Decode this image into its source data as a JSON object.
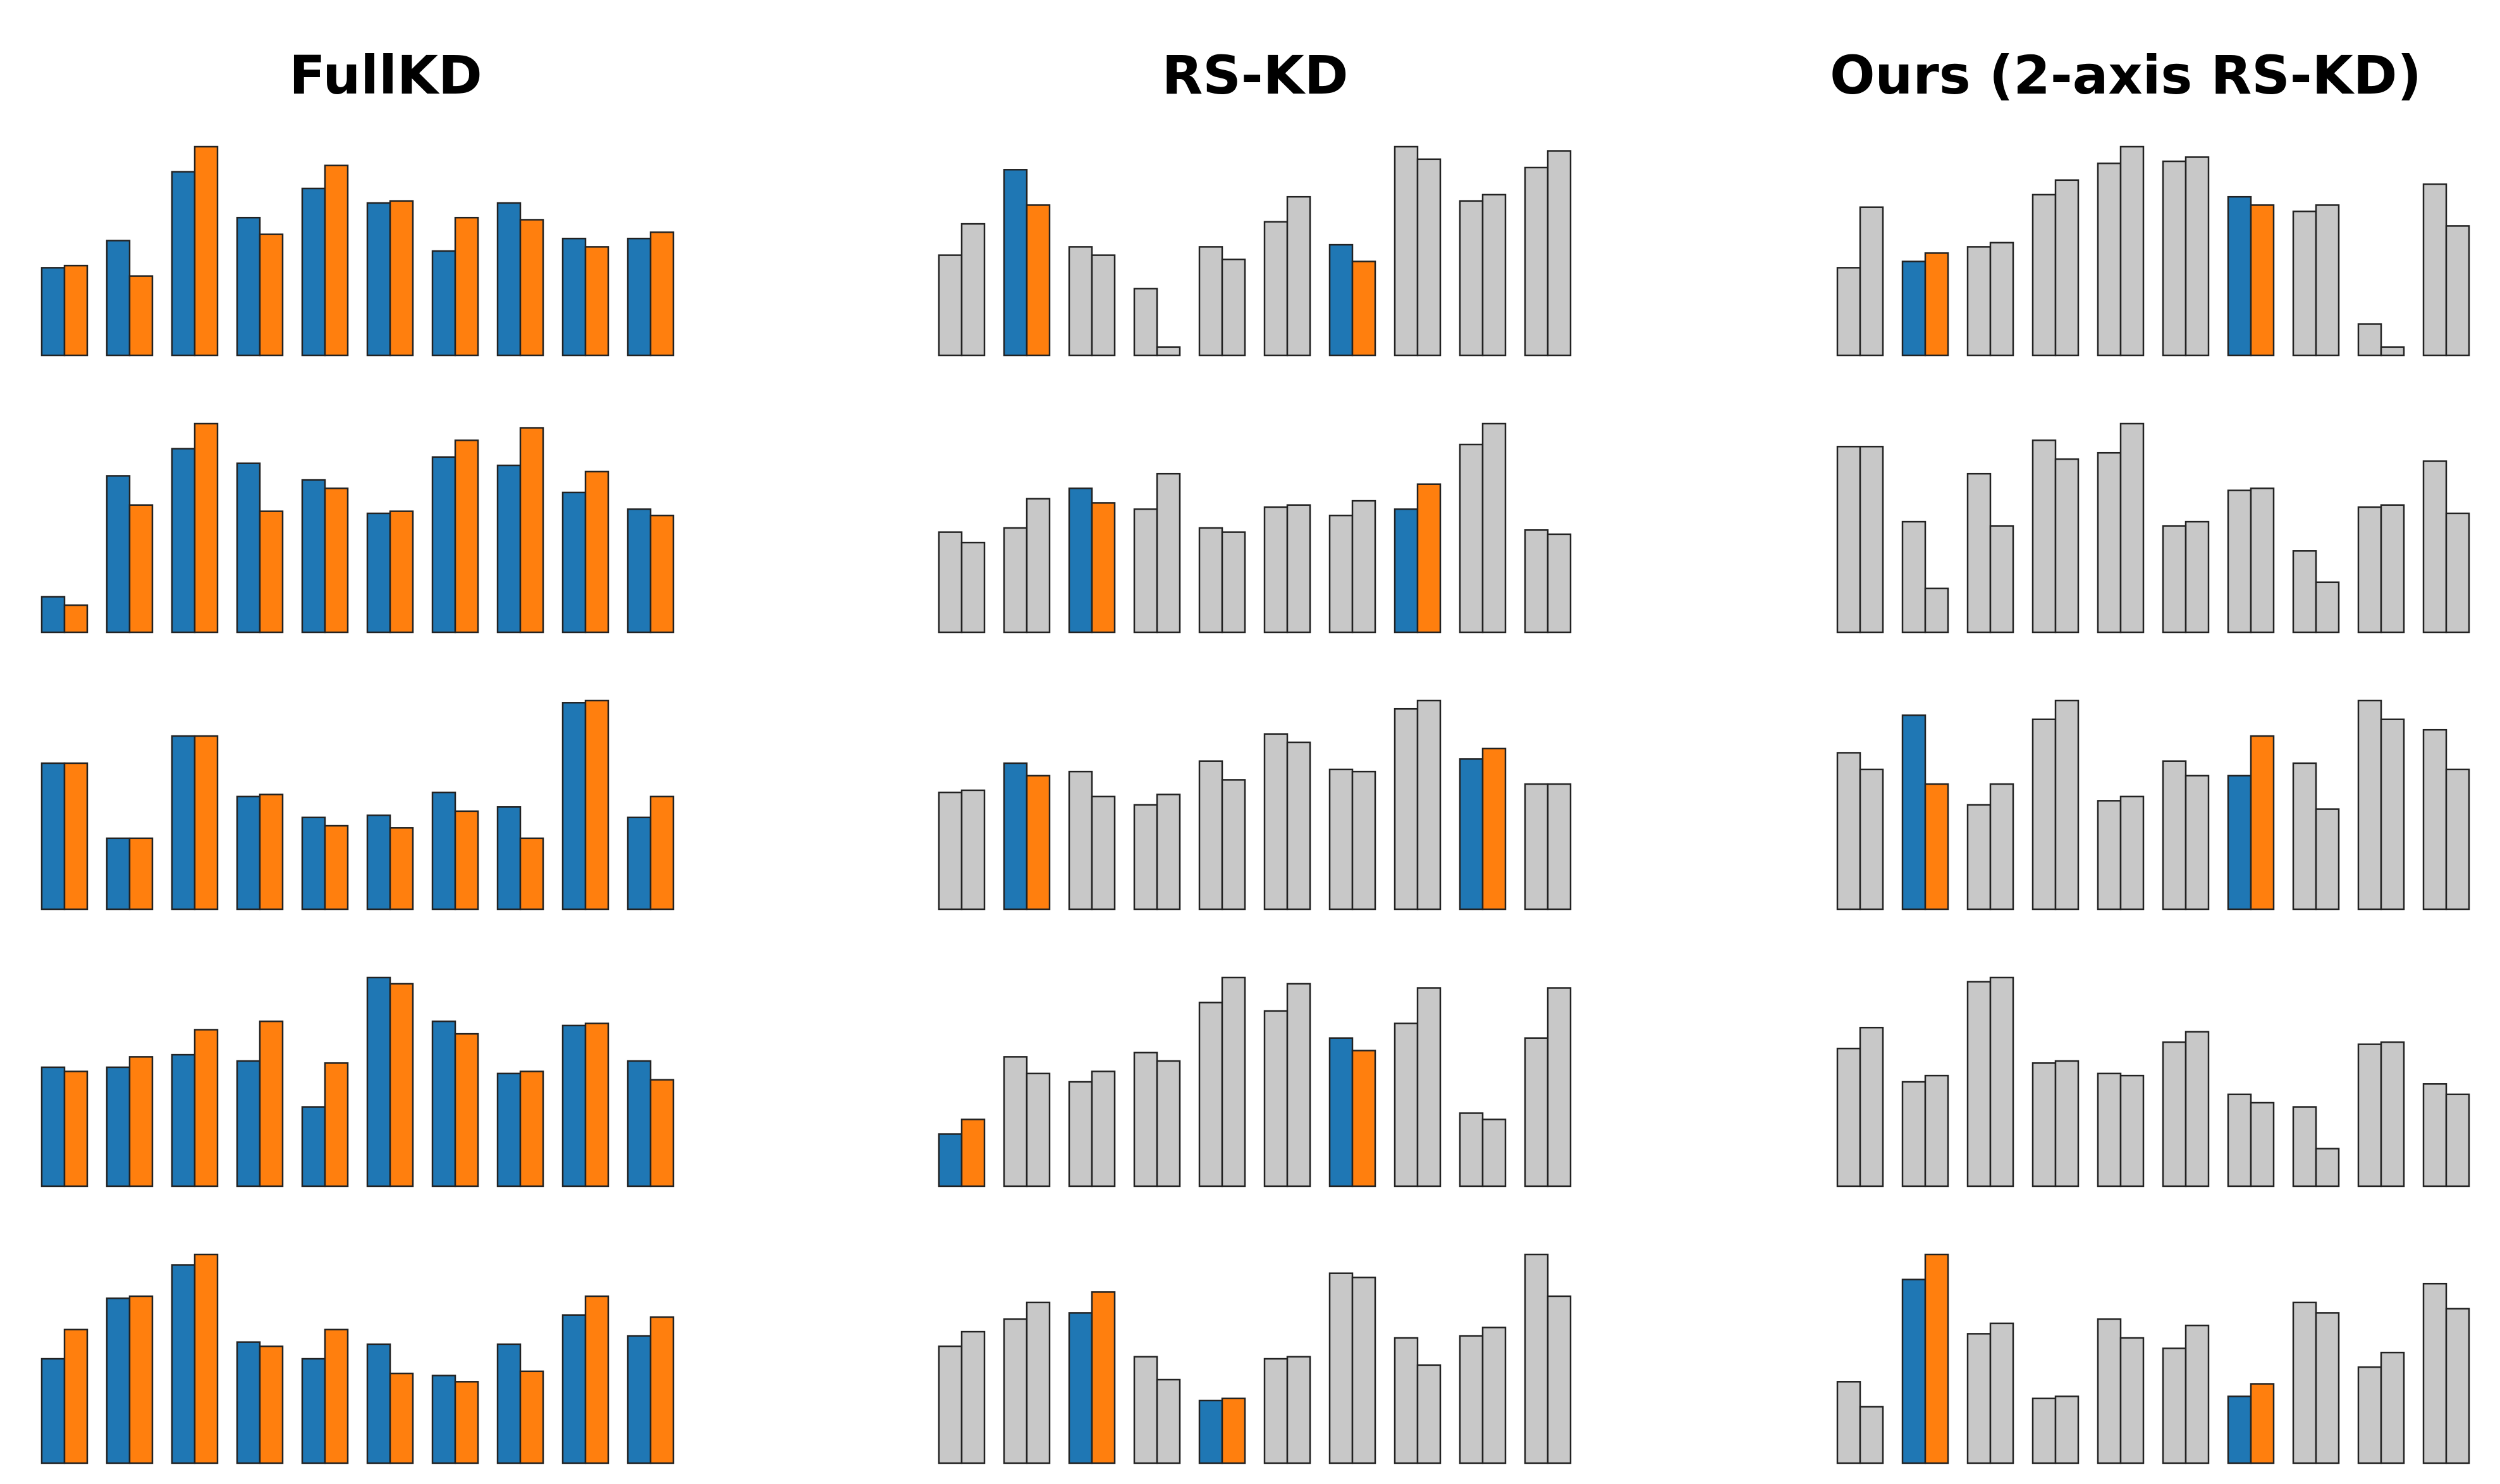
{
  "colors": {
    "teacher": "#1f77b4",
    "student": "#ff7f0e",
    "unselected": "#c8c8c8",
    "edge": "#222222"
  },
  "chart_data": [
    {
      "type": "bar",
      "title": "FullKD",
      "ylim": [
        0,
        1
      ],
      "grid": false,
      "legend": "none",
      "rows": [
        {
          "pairs": [
            [
              0.42,
              0.43
            ],
            [
              0.55,
              0.38
            ],
            [
              0.88,
              1.0
            ],
            [
              0.66,
              0.58
            ],
            [
              0.8,
              0.91
            ],
            [
              0.73,
              0.74
            ],
            [
              0.5,
              0.66
            ],
            [
              0.73,
              0.65
            ],
            [
              0.56,
              0.52
            ],
            [
              0.56,
              0.59
            ]
          ],
          "highlight": [
            0,
            1,
            2,
            3,
            4,
            5,
            6,
            7,
            8,
            9
          ]
        },
        {
          "pairs": [
            [
              0.17,
              0.13
            ],
            [
              0.75,
              0.61
            ],
            [
              0.88,
              1.0
            ],
            [
              0.81,
              0.58
            ],
            [
              0.73,
              0.69
            ],
            [
              0.57,
              0.58
            ],
            [
              0.84,
              0.92
            ],
            [
              0.8,
              0.98
            ],
            [
              0.67,
              0.77
            ],
            [
              0.59,
              0.56
            ]
          ],
          "highlight": [
            0,
            1,
            2,
            3,
            4,
            5,
            6,
            7,
            8,
            9
          ]
        },
        {
          "pairs": [
            [
              0.7,
              0.7
            ],
            [
              0.34,
              0.34
            ],
            [
              0.83,
              0.83
            ],
            [
              0.54,
              0.55
            ],
            [
              0.44,
              0.4
            ],
            [
              0.45,
              0.39
            ],
            [
              0.56,
              0.47
            ],
            [
              0.49,
              0.34
            ],
            [
              0.99,
              1.0
            ],
            [
              0.44,
              0.54
            ]
          ],
          "highlight": [
            0,
            1,
            2,
            3,
            4,
            5,
            6,
            7,
            8,
            9
          ]
        },
        {
          "pairs": [
            [
              0.57,
              0.55
            ],
            [
              0.57,
              0.62
            ],
            [
              0.63,
              0.75
            ],
            [
              0.6,
              0.79
            ],
            [
              0.38,
              0.59
            ],
            [
              1.0,
              0.97
            ],
            [
              0.79,
              0.73
            ],
            [
              0.54,
              0.55
            ],
            [
              0.77,
              0.78
            ],
            [
              0.6,
              0.51
            ]
          ],
          "highlight": [
            0,
            1,
            2,
            3,
            4,
            5,
            6,
            7,
            8,
            9
          ]
        },
        {
          "pairs": [
            [
              0.5,
              0.64
            ],
            [
              0.79,
              0.8
            ],
            [
              0.95,
              1.0
            ],
            [
              0.58,
              0.56
            ],
            [
              0.5,
              0.64
            ],
            [
              0.57,
              0.43
            ],
            [
              0.42,
              0.39
            ],
            [
              0.57,
              0.44
            ],
            [
              0.71,
              0.8
            ],
            [
              0.61,
              0.7
            ]
          ],
          "highlight": [
            0,
            1,
            2,
            3,
            4,
            5,
            6,
            7,
            8,
            9
          ]
        }
      ]
    },
    {
      "type": "bar",
      "title": "RS-KD",
      "ylim": [
        0,
        1
      ],
      "grid": false,
      "legend": "none",
      "rows": [
        {
          "pairs": [
            [
              0.48,
              0.63
            ],
            [
              0.89,
              0.72
            ],
            [
              0.52,
              0.48
            ],
            [
              0.32,
              0.04
            ],
            [
              0.52,
              0.46
            ],
            [
              0.64,
              0.76
            ],
            [
              0.53,
              0.45
            ],
            [
              1.0,
              0.94
            ],
            [
              0.74,
              0.77
            ],
            [
              0.9,
              0.98
            ]
          ],
          "highlight": [
            1,
            6
          ]
        },
        {
          "pairs": [
            [
              0.48,
              0.43
            ],
            [
              0.5,
              0.64
            ],
            [
              0.69,
              0.62
            ],
            [
              0.59,
              0.76
            ],
            [
              0.5,
              0.48
            ],
            [
              0.6,
              0.61
            ],
            [
              0.56,
              0.63
            ],
            [
              0.59,
              0.71
            ],
            [
              0.9,
              1.0
            ],
            [
              0.49,
              0.47
            ]
          ],
          "highlight": [
            2,
            7
          ]
        },
        {
          "pairs": [
            [
              0.56,
              0.57
            ],
            [
              0.7,
              0.64
            ],
            [
              0.66,
              0.54
            ],
            [
              0.5,
              0.55
            ],
            [
              0.71,
              0.62
            ],
            [
              0.84,
              0.8
            ],
            [
              0.67,
              0.66
            ],
            [
              0.96,
              1.0
            ],
            [
              0.72,
              0.77
            ],
            [
              0.6,
              0.6
            ]
          ],
          "highlight": [
            1,
            8
          ]
        },
        {
          "pairs": [
            [
              0.25,
              0.32
            ],
            [
              0.62,
              0.54
            ],
            [
              0.5,
              0.55
            ],
            [
              0.64,
              0.6
            ],
            [
              0.88,
              1.0
            ],
            [
              0.84,
              0.97
            ],
            [
              0.71,
              0.65
            ],
            [
              0.78,
              0.95
            ],
            [
              0.35,
              0.32
            ],
            [
              0.71,
              0.95
            ]
          ],
          "highlight": [
            0,
            6
          ]
        },
        {
          "pairs": [
            [
              0.56,
              0.63
            ],
            [
              0.69,
              0.77
            ],
            [
              0.72,
              0.82
            ],
            [
              0.51,
              0.4
            ],
            [
              0.3,
              0.31
            ],
            [
              0.5,
              0.51
            ],
            [
              0.91,
              0.89
            ],
            [
              0.6,
              0.47
            ],
            [
              0.61,
              0.65
            ],
            [
              1.0,
              0.8
            ]
          ],
          "highlight": [
            2,
            4
          ]
        }
      ]
    },
    {
      "type": "bar",
      "title": "Ours (2-axis RS-KD)",
      "ylim": [
        0,
        1
      ],
      "grid": false,
      "legend": "none",
      "rows": [
        {
          "pairs": [
            [
              0.42,
              0.71
            ],
            [
              0.45,
              0.49
            ],
            [
              0.52,
              0.54
            ],
            [
              0.77,
              0.84
            ],
            [
              0.92,
              1.0
            ],
            [
              0.93,
              0.95
            ],
            [
              0.76,
              0.72
            ],
            [
              0.69,
              0.72
            ],
            [
              0.15,
              0.04
            ],
            [
              0.82,
              0.62
            ]
          ],
          "highlight": [
            1,
            6
          ]
        },
        {
          "pairs": [
            [
              0.89,
              0.89
            ],
            [
              0.53,
              0.21
            ],
            [
              0.76,
              0.51
            ],
            [
              0.92,
              0.83
            ],
            [
              0.86,
              1.0
            ],
            [
              0.51,
              0.53
            ],
            [
              0.68,
              0.69
            ],
            [
              0.39,
              0.24
            ],
            [
              0.6,
              0.61
            ],
            [
              0.82,
              0.57
            ]
          ],
          "highlight": []
        },
        {
          "pairs": [
            [
              0.75,
              0.67
            ],
            [
              0.93,
              0.6
            ],
            [
              0.5,
              0.6
            ],
            [
              0.91,
              1.0
            ],
            [
              0.52,
              0.54
            ],
            [
              0.71,
              0.64
            ],
            [
              0.64,
              0.83
            ],
            [
              0.7,
              0.48
            ],
            [
              1.0,
              0.91
            ],
            [
              0.86,
              0.67
            ]
          ],
          "highlight": [
            1,
            6
          ]
        },
        {
          "pairs": [
            [
              0.66,
              0.76
            ],
            [
              0.5,
              0.53
            ],
            [
              0.98,
              1.0
            ],
            [
              0.59,
              0.6
            ],
            [
              0.54,
              0.53
            ],
            [
              0.69,
              0.74
            ],
            [
              0.44,
              0.4
            ],
            [
              0.38,
              0.18
            ],
            [
              0.68,
              0.69
            ],
            [
              0.49,
              0.44
            ]
          ],
          "highlight": []
        },
        {
          "pairs": [
            [
              0.39,
              0.27
            ],
            [
              0.88,
              1.0
            ],
            [
              0.62,
              0.67
            ],
            [
              0.31,
              0.32
            ],
            [
              0.69,
              0.6
            ],
            [
              0.55,
              0.66
            ],
            [
              0.32,
              0.38
            ],
            [
              0.77,
              0.72
            ],
            [
              0.46,
              0.53
            ],
            [
              0.86,
              0.74
            ]
          ],
          "highlight": [
            1,
            6
          ]
        }
      ]
    }
  ]
}
